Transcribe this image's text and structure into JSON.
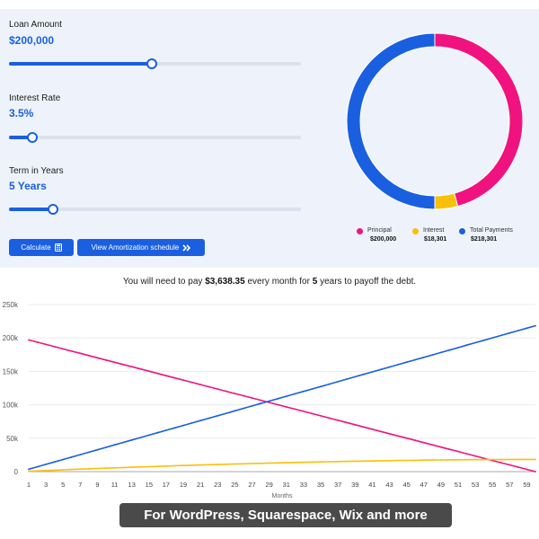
{
  "inputs": {
    "loan_amount": {
      "label": "Loan Amount",
      "value": "$200,000",
      "slider_fraction": 0.49
    },
    "interest_rate": {
      "label": "Interest Rate",
      "value": "3.5%",
      "slider_fraction": 0.08
    },
    "term_years": {
      "label": "Term in Years",
      "value": "5 Years",
      "slider_fraction": 0.15
    }
  },
  "buttons": {
    "calculate": {
      "label": "Calculate",
      "icon": "calculator-icon"
    },
    "amortization": {
      "label": "View Amortization schedule",
      "icon": "double-chevron-right-icon"
    }
  },
  "legend": [
    {
      "key": "principal",
      "label": "Principal",
      "value": "$200,000",
      "color": "#f0137f"
    },
    {
      "key": "interest",
      "label": "Interest",
      "value": "$18,301",
      "color": "#fbbf0a"
    },
    {
      "key": "total",
      "label": "Total Payments",
      "value": "$218,301",
      "color": "#1a5fe0"
    }
  ],
  "summary": {
    "prefix": "You will need to pay",
    "payment": "$3,638.35",
    "middle": "every month for",
    "years": "5",
    "suffix": "years to payoff the debt."
  },
  "banner": {
    "text": "For WordPress, Squarespace, Wix and more"
  },
  "chart_data": [
    {
      "type": "pie",
      "style": "donut",
      "categories": [
        "Principal",
        "Interest",
        "Total Payments"
      ],
      "values": [
        200000,
        18301,
        218301
      ],
      "colors": [
        "#f0137f",
        "#fbbf0a",
        "#1a5fe0"
      ]
    },
    {
      "type": "line",
      "x": [
        1,
        3,
        5,
        7,
        9,
        11,
        13,
        15,
        17,
        19,
        21,
        23,
        25,
        27,
        29,
        31,
        33,
        35,
        37,
        39,
        41,
        43,
        45,
        47,
        49,
        51,
        53,
        55,
        57,
        59
      ],
      "xlabel": "Months",
      "x_range": [
        1,
        60
      ],
      "y_ticks": [
        0,
        50000,
        100000,
        150000,
        200000,
        250000
      ],
      "y_tick_labels": [
        "0",
        "50k",
        "100k",
        "150k",
        "200k",
        "250k"
      ],
      "ylim": [
        0,
        250000
      ],
      "grid": true,
      "series": [
        {
          "key": "principal",
          "color": "#f0137f",
          "start": [
            1,
            197000
          ],
          "end": [
            60,
            0
          ]
        },
        {
          "key": "total",
          "color": "#1a5fe0",
          "start": [
            1,
            3600
          ],
          "end": [
            60,
            218301
          ]
        },
        {
          "key": "interest",
          "color": "#fbbf0a",
          "start": [
            1,
            600
          ],
          "end": [
            60,
            18301
          ]
        }
      ]
    }
  ]
}
